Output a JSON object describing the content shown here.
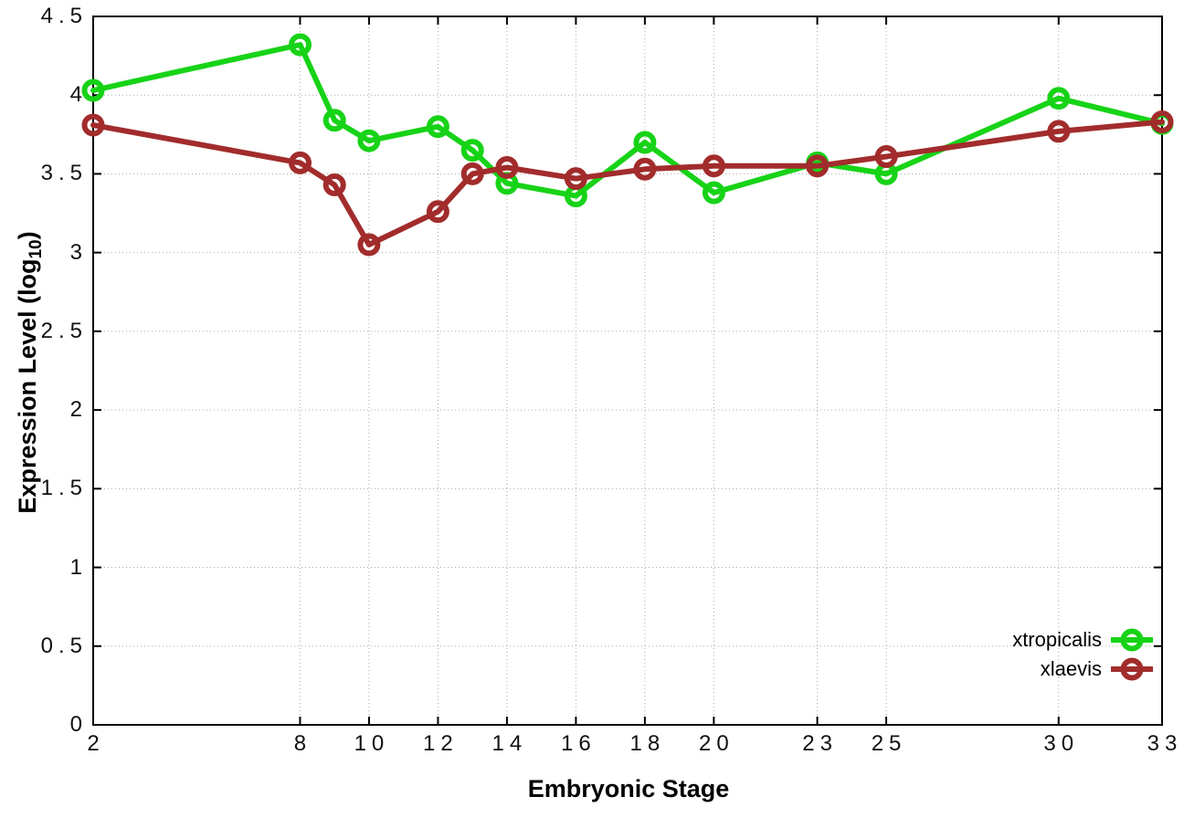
{
  "chart_data": {
    "type": "line",
    "title": "",
    "xlabel": "Embryonic Stage",
    "ylabel": "Expression Level (log10)",
    "ylabel_parts": {
      "prefix": "Expression Level (log",
      "sub": "10",
      "suffix": ")"
    },
    "x": [
      2,
      8,
      9,
      10,
      12,
      13,
      14,
      16,
      18,
      20,
      23,
      25,
      30,
      33
    ],
    "x_ticks": [
      2,
      8,
      10,
      12,
      14,
      16,
      18,
      20,
      23,
      25,
      30,
      33
    ],
    "x_tick_labels": [
      "2",
      "8",
      "10",
      "12",
      "14",
      "16",
      "18",
      "20",
      "23",
      "25",
      "30",
      "33"
    ],
    "y_ticks": [
      0,
      0.5,
      1,
      1.5,
      2,
      2.5,
      3,
      3.5,
      4,
      4.5
    ],
    "y_tick_labels": [
      "0",
      "0.5",
      "1",
      "1.5",
      "2",
      "2.5",
      "3",
      "3.5",
      "4",
      "4.5"
    ],
    "xlim": [
      2,
      33
    ],
    "ylim": [
      0,
      4.5
    ],
    "grid": true,
    "marker": "open-circle",
    "legend_position": "bottom-right-inside",
    "colors": {
      "background": "#ffffff",
      "border": "#000000",
      "grid": "#aaaaaa",
      "tick_text": "#111111"
    },
    "series": [
      {
        "name": "xtropicalis",
        "color": "#17d317",
        "values": [
          4.03,
          4.32,
          3.84,
          3.71,
          3.8,
          3.65,
          3.44,
          3.36,
          3.7,
          3.38,
          3.57,
          3.5,
          3.98,
          3.82
        ]
      },
      {
        "name": "xlaevis",
        "color": "#a22c2c",
        "values": [
          3.81,
          3.57,
          3.43,
          3.05,
          3.26,
          3.5,
          3.54,
          3.47,
          3.53,
          3.55,
          3.55,
          3.61,
          3.77,
          3.83
        ]
      }
    ]
  }
}
